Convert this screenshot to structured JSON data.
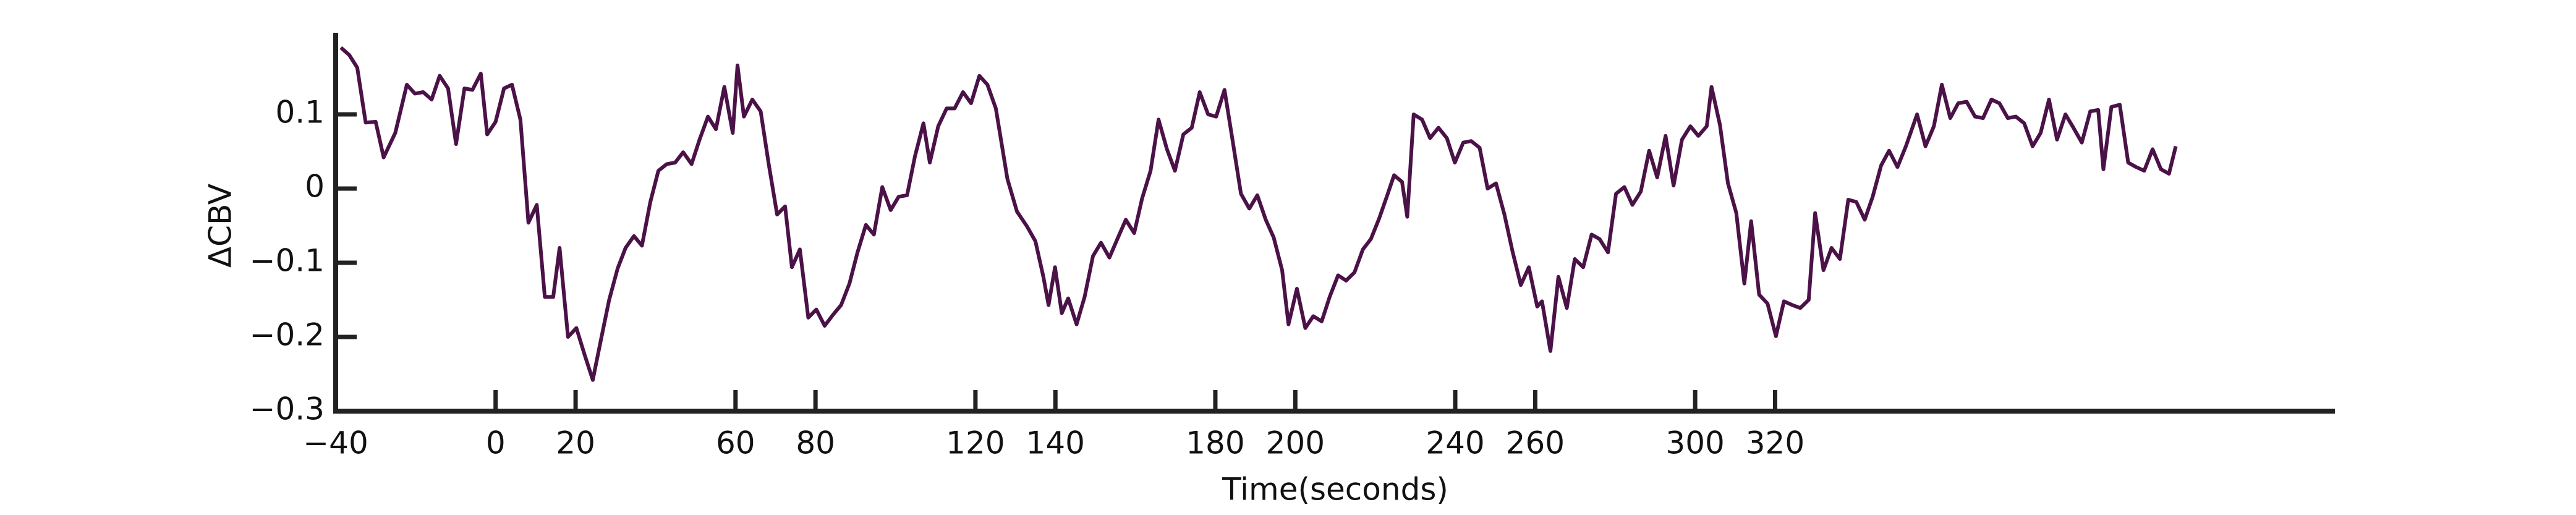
{
  "chart_data": {
    "type": "line",
    "xlabel": "Time(seconds)",
    "ylabel": "ΔCBV",
    "xlim": [
      -40,
      460
    ],
    "ylim": [
      -0.3,
      0.21
    ],
    "xticks": [
      {
        "value": -40,
        "label": "−40"
      },
      0,
      20,
      60,
      80,
      120,
      140,
      180,
      200,
      240,
      260,
      300,
      320
    ],
    "yticks": [
      {
        "value": -0.3,
        "label": "−0.3"
      },
      {
        "value": -0.2,
        "label": "−0.2"
      },
      {
        "value": -0.1,
        "label": "−0.1"
      },
      0,
      0.1
    ],
    "grid": false,
    "x": [
      -38.7,
      -36.6,
      -34.6,
      -32.5,
      -30.0,
      -28.0,
      -25.1,
      -22.2,
      -20.2,
      -18.1,
      -16.0,
      -14.0,
      -11.9,
      -9.9,
      -7.8,
      -5.8,
      -3.7,
      -2.1,
      0,
      2.1,
      4.1,
      6.2,
      8.2,
      10.3,
      12.3,
      14.4,
      16.0,
      18.1,
      20.2,
      22.2,
      24.3,
      26.3,
      28.4,
      30.5,
      32.5,
      34.6,
      36.6,
      38.7,
      40.7,
      42.8,
      44.9,
      46.9,
      49.0,
      51.0,
      53.1,
      55.1,
      57.2,
      59.3,
      60.5,
      62.1,
      64.2,
      66.3,
      68.3,
      70.4,
      72.4,
      74.1,
      76.1,
      78.2,
      80.2,
      82.3,
      84.4,
      86.4,
      88.5,
      90.5,
      92.6,
      94.6,
      96.7,
      98.8,
      100.8,
      102.9,
      104.9,
      107.0,
      108.6,
      110.7,
      112.8,
      114.8,
      116.9,
      118.9,
      121.0,
      123.0,
      125.1,
      128.0,
      130.4,
      132.9,
      135.0,
      137.0,
      138.3,
      139.9,
      141.6,
      143.2,
      145.3,
      147.3,
      149.4,
      151.4,
      153.5,
      155.5,
      157.6,
      159.7,
      161.7,
      163.8,
      165.8,
      167.9,
      169.9,
      172.0,
      174.1,
      176.1,
      178.2,
      180.2,
      182.3,
      184.4,
      186.4,
      188.5,
      190.5,
      192.6,
      194.6,
      196.7,
      198.3,
      200.4,
      202.5,
      204.5,
      206.6,
      208.6,
      210.7,
      212.7,
      214.8,
      216.9,
      218.9,
      221.0,
      223.0,
      224.7,
      226.7,
      228.0,
      229.6,
      231.7,
      233.7,
      235.8,
      237.9,
      239.9,
      242.0,
      244.0,
      246.1,
      248.1,
      250.2,
      252.3,
      254.3,
      256.4,
      258.4,
      260.5,
      261.7,
      263.8,
      265.8,
      267.9,
      269.9,
      272.0,
      274.1,
      276.1,
      278.2,
      280.2,
      282.3,
      284.3,
      286.4,
      288.5,
      290.5,
      292.6,
      294.6,
      296.7,
      298.8,
      300.8,
      302.9,
      304.1,
      306.2,
      308.2,
      310.3,
      312.3,
      314.0,
      316.0,
      318.1,
      320.2,
      322.2,
      324.3,
      326.3,
      328.4,
      330.0,
      332.1,
      334.1,
      336.2,
      338.3,
      340.3,
      342.4,
      344.4,
      346.5,
      348.5,
      350.6,
      352.7,
      355.5,
      357.6,
      359.7,
      361.7,
      363.8,
      365.8,
      367.9,
      370.0,
      372.0,
      374.1,
      376.1,
      378.2,
      380.2,
      382.3,
      384.4,
      386.4,
      388.5,
      390.5,
      392.6,
      394.6,
      396.7,
      398.8,
      400.8,
      402.1,
      404.1,
      406.2,
      408.3,
      410.3,
      412.3,
      414.4,
      416.5,
      418.5,
      420.2
    ],
    "series": [
      {
        "color": "#4b1248",
        "values": [
          0.19,
          0.18,
          0.163,
          0.089,
          0.09,
          0.042,
          0.075,
          0.14,
          0.128,
          0.13,
          0.12,
          0.152,
          0.135,
          0.06,
          0.135,
          0.133,
          0.155,
          0.073,
          0.09,
          0.135,
          0.14,
          0.093,
          -0.046,
          -0.022,
          -0.146,
          -0.146,
          -0.08,
          -0.2,
          -0.188,
          -0.223,
          -0.258,
          -0.205,
          -0.15,
          -0.108,
          -0.08,
          -0.064,
          -0.077,
          -0.018,
          0.024,
          0.033,
          0.035,
          0.049,
          0.033,
          0.066,
          0.097,
          0.08,
          0.137,
          0.075,
          0.166,
          0.097,
          0.12,
          0.104,
          0.033,
          -0.035,
          -0.024,
          -0.106,
          -0.082,
          -0.174,
          -0.163,
          -0.185,
          -0.17,
          -0.157,
          -0.128,
          -0.086,
          -0.049,
          -0.062,
          0.002,
          -0.029,
          -0.011,
          -0.009,
          0.044,
          0.088,
          0.035,
          0.084,
          0.108,
          0.108,
          0.13,
          0.115,
          0.152,
          0.14,
          0.108,
          0.013,
          -0.031,
          -0.051,
          -0.071,
          -0.119,
          -0.157,
          -0.106,
          -0.168,
          -0.148,
          -0.183,
          -0.146,
          -0.091,
          -0.073,
          -0.093,
          -0.068,
          -0.042,
          -0.06,
          -0.013,
          0.024,
          0.093,
          0.053,
          0.024,
          0.073,
          0.082,
          0.13,
          0.1,
          0.097,
          0.133,
          0.062,
          -0.007,
          -0.027,
          -0.009,
          -0.042,
          -0.066,
          -0.11,
          -0.183,
          -0.135,
          -0.188,
          -0.172,
          -0.179,
          -0.146,
          -0.117,
          -0.124,
          -0.113,
          -0.082,
          -0.068,
          -0.04,
          -0.009,
          0.018,
          0.009,
          -0.038,
          0.1,
          0.093,
          0.068,
          0.082,
          0.068,
          0.035,
          0.062,
          0.064,
          0.055,
          0,
          0.007,
          -0.035,
          -0.084,
          -0.13,
          -0.106,
          -0.159,
          -0.152,
          -0.219,
          -0.119,
          -0.161,
          -0.095,
          -0.106,
          -0.062,
          -0.068,
          -0.086,
          -0.007,
          0.002,
          -0.022,
          -0.004,
          0.051,
          0.015,
          0.071,
          0.004,
          0.066,
          0.084,
          0.071,
          0.084,
          0.137,
          0.086,
          0.007,
          -0.033,
          -0.128,
          -0.044,
          -0.143,
          -0.155,
          -0.199,
          -0.152,
          -0.157,
          -0.161,
          -0.15,
          -0.033,
          -0.11,
          -0.08,
          -0.095,
          -0.015,
          -0.018,
          -0.042,
          -0.011,
          0.031,
          0.051,
          0.029,
          0.057,
          0.1,
          0.057,
          0.084,
          0.14,
          0.095,
          0.115,
          0.117,
          0.097,
          0.095,
          0.12,
          0.115,
          0.095,
          0.097,
          0.088,
          0.057,
          0.075,
          0.12,
          0.066,
          0.1,
          0.082,
          0.062,
          0.104,
          0.106,
          0.026,
          0.11,
          0.113,
          0.035,
          0.029,
          0.024,
          0.053,
          0.026,
          0.02,
          0.057
        ]
      }
    ]
  }
}
